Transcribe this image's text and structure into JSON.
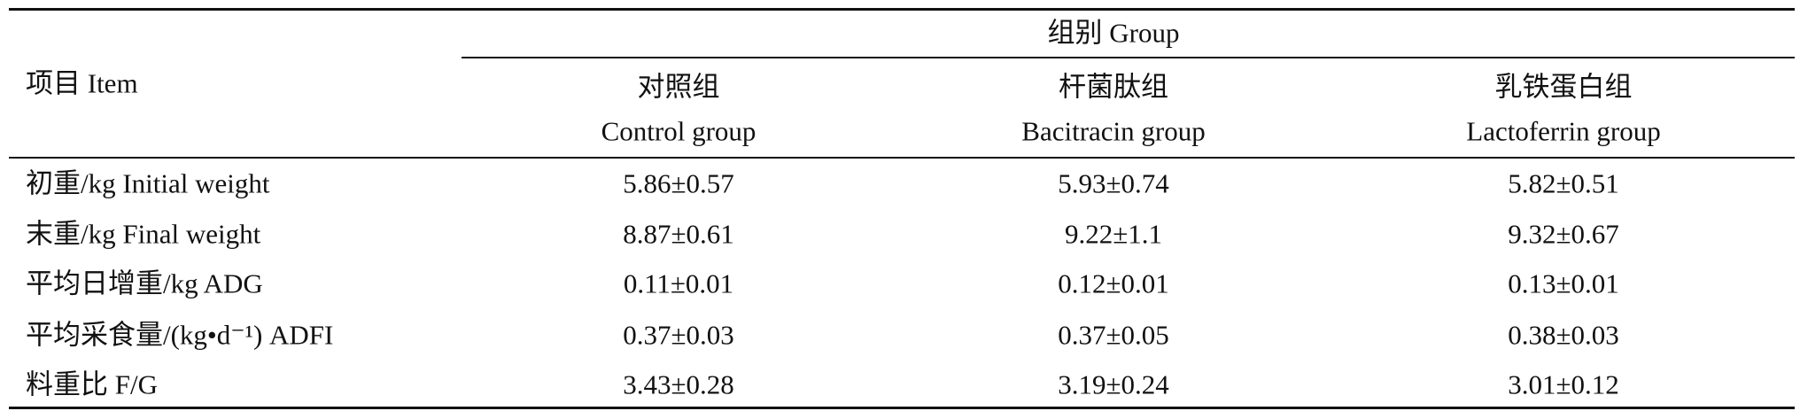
{
  "header": {
    "item": "项目 Item",
    "group": "组别 Group",
    "columns": [
      {
        "zh": "对照组",
        "en": "Control group"
      },
      {
        "zh": "杆菌肽组",
        "en": "Bacitracin group"
      },
      {
        "zh": "乳铁蛋白组",
        "en": "Lactoferrin group"
      }
    ]
  },
  "table": {
    "rows": [
      [
        "初重/kg Initial weight",
        "5.86±0.57",
        "5.93±0.74",
        "5.82±0.51"
      ],
      [
        "末重/kg Final weight",
        "8.87±0.61",
        "9.22±1.1",
        "9.32±0.67"
      ],
      [
        "平均日增重/kg ADG",
        "0.11±0.01",
        "0.12±0.01",
        "0.13±0.01"
      ],
      [
        "平均采食量/(kg•d⁻¹) ADFI",
        "0.37±0.03",
        "0.37±0.05",
        "0.38±0.03"
      ],
      [
        "料重比 F/G",
        "3.43±0.28",
        "3.19±0.24",
        "3.01±0.12"
      ]
    ]
  }
}
